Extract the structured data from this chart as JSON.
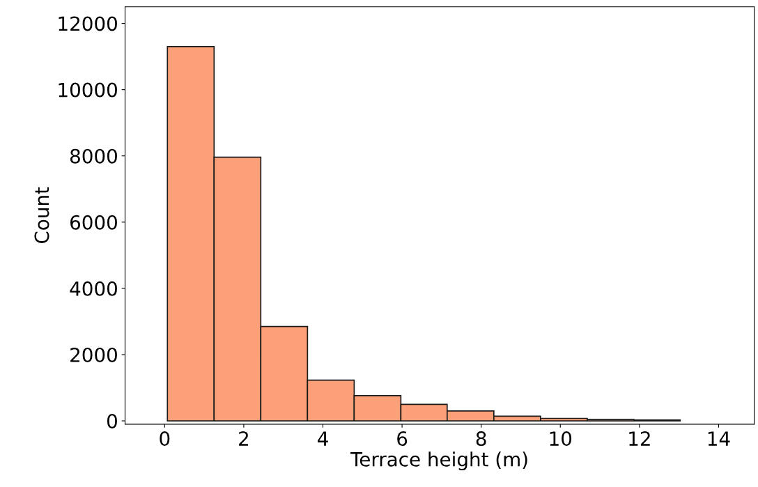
{
  "chart_data": {
    "type": "histogram",
    "xlabel": "Terrace height (m)",
    "ylabel": "Count",
    "bins": [
      0.07,
      1.25,
      2.43,
      3.61,
      4.79,
      5.97,
      7.14,
      8.32,
      9.5,
      10.68,
      11.86,
      13.03
    ],
    "values": [
      11300,
      7960,
      2850,
      1230,
      760,
      500,
      300,
      140,
      75,
      40,
      25
    ],
    "color": "#fca07a",
    "xlim": [
      -1.0,
      14.9
    ],
    "ylim": [
      -100,
      12500
    ],
    "xticks": [
      0,
      2,
      4,
      6,
      8,
      10,
      12,
      14
    ],
    "yticks": [
      0,
      2000,
      4000,
      6000,
      8000,
      10000,
      12000
    ],
    "grid": false
  }
}
